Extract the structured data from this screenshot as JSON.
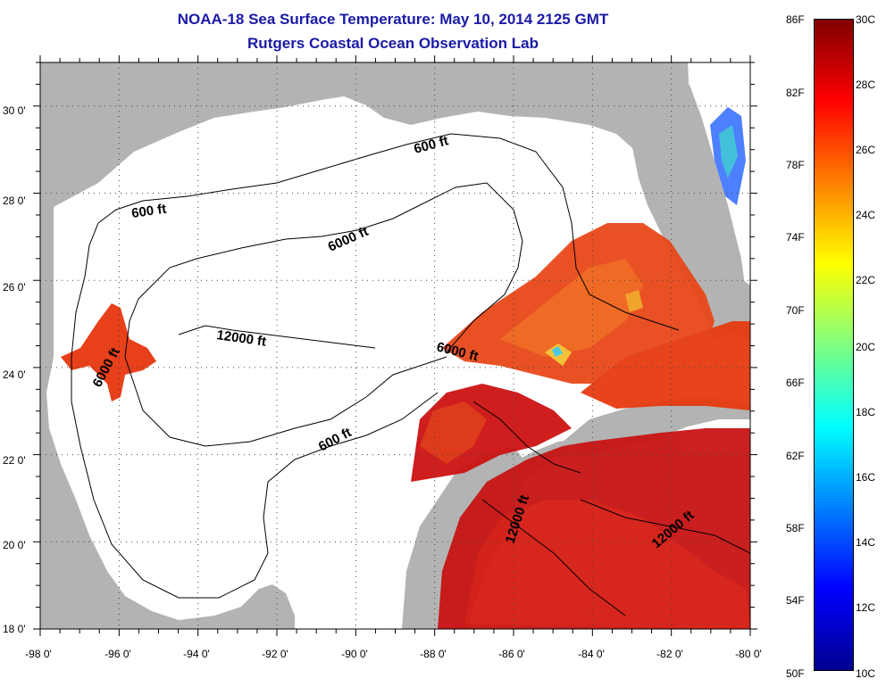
{
  "title": {
    "line1": "NOAA-18 Sea Surface Temperature:  May 10, 2014 2125 GMT",
    "line2": "Rutgers Coastal Ocean Observation Lab"
  },
  "map": {
    "latitude_labels": [
      "30 0'",
      "28 0'",
      "26 0'",
      "24 0'",
      "22 0'",
      "20 0'",
      "18 0'"
    ],
    "longitude_labels": [
      "-98 0'",
      "-96 0'",
      "-94 0'",
      "-92 0'",
      "-90 0'",
      "-88 0'",
      "-86 0'",
      "-84 0'",
      "-82 0'",
      "-80 0'"
    ],
    "lat_range": [
      18,
      31
    ],
    "lon_range": [
      -98,
      -80
    ],
    "contour_labels": [
      "600 ft",
      "600 ft",
      "600 ft",
      "6000 ft",
      "6000 ft",
      "6000 ft",
      "12000 ft",
      "12000 ft",
      "12000 ft"
    ],
    "colors": {
      "land": "#b3b3b3",
      "no_data": "#ffffff",
      "warm": "#cc1010",
      "hot": "#e83a10"
    }
  },
  "colorbar": {
    "fahrenheit_labels": [
      "86F",
      "82F",
      "78F",
      "74F",
      "70F",
      "66F",
      "62F",
      "58F",
      "54F",
      "50F"
    ],
    "celsius_labels": [
      "30C",
      "28C",
      "26C",
      "24C",
      "22C",
      "20C",
      "18C",
      "16C",
      "14C",
      "12C",
      "10C"
    ],
    "colors": [
      "#00008f",
      "#0000ff",
      "#0080ff",
      "#00ffff",
      "#80ff80",
      "#ffff00",
      "#ff8000",
      "#ff0000",
      "#800000"
    ]
  }
}
